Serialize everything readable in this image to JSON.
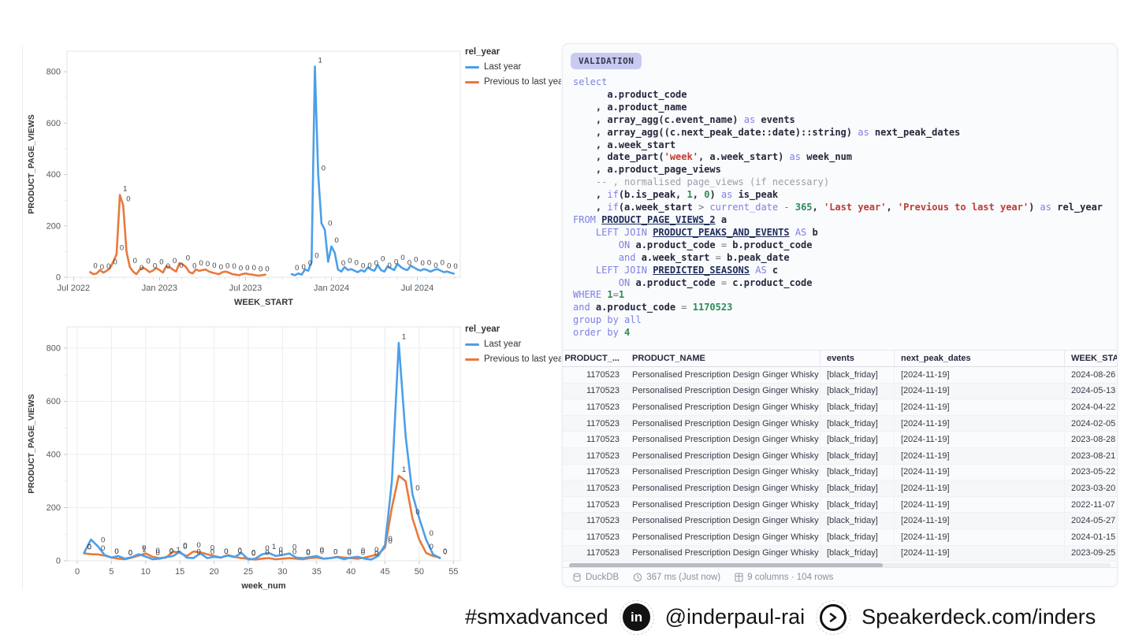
{
  "chart_data": [
    {
      "type": "line",
      "title": "",
      "xlabel": "WEEK_START",
      "ylabel": "PRODUCT_PAGE_VIEWS",
      "ylim": [
        0,
        880
      ],
      "yticks": [
        0,
        200,
        400,
        600,
        800
      ],
      "y_minor_step": 100,
      "xlim": [
        -2,
        117
      ],
      "x_minor_step": 4.345,
      "grid": false,
      "x_unit": "weeks since 2022-07-04",
      "xticks": [
        {
          "v": 0,
          "t": "Jul 2022"
        },
        {
          "v": 26,
          "t": "Jan 2023"
        },
        {
          "v": 52,
          "t": "Jul 2023"
        },
        {
          "v": 78,
          "t": "Jan 2024"
        },
        {
          "v": 104,
          "t": "Jul 2024"
        }
      ],
      "point_label_field": "is_peak",
      "legend": {
        "title": "rel_year",
        "position": "right"
      },
      "series": [
        {
          "name": "Last year",
          "color": "#4c9fe8",
          "x_start": 66,
          "x_step": 1,
          "values": [
            12,
            8,
            15,
            10,
            30,
            25,
            60,
            820,
            400,
            210,
            185,
            60,
            120,
            95,
            30,
            22,
            40,
            28,
            32,
            25,
            20,
            28,
            22,
            38,
            30,
            25,
            48,
            28,
            22,
            42,
            35,
            28,
            52,
            40,
            32,
            28,
            45,
            38,
            30,
            26,
            32,
            28,
            22,
            28,
            32,
            26,
            20,
            22,
            18,
            14
          ],
          "is_peak_at": [
            73
          ]
        },
        {
          "name": "Previous to last year",
          "color": "#e8793c",
          "x_start": 5,
          "x_step": 1,
          "values": [
            20,
            12,
            15,
            28,
            18,
            25,
            35,
            60,
            90,
            320,
            280,
            100,
            40,
            22,
            12,
            30,
            38,
            30,
            20,
            26,
            36,
            28,
            18,
            42,
            40,
            30,
            22,
            55,
            50,
            40,
            20,
            15,
            30,
            25,
            28,
            30,
            22,
            18,
            15,
            12,
            20,
            22,
            18,
            12,
            10,
            8,
            12,
            15,
            12,
            10,
            8,
            6,
            8,
            10
          ],
          "is_peak_at": [
            14
          ]
        }
      ]
    },
    {
      "type": "line",
      "title": "",
      "xlabel": "week_num",
      "ylabel": "PRODUCT_PAGE_VIEWS",
      "ylim": [
        0,
        880
      ],
      "yticks": [
        0,
        200,
        400,
        600,
        800
      ],
      "y_minor_step": 100,
      "xlim": [
        -1.5,
        56
      ],
      "x_minor_step": null,
      "grid": true,
      "x_unit": "week_num",
      "xticks": [
        {
          "v": 0,
          "t": "0"
        },
        {
          "v": 5,
          "t": "5"
        },
        {
          "v": 10,
          "t": "10"
        },
        {
          "v": 15,
          "t": "15"
        },
        {
          "v": 20,
          "t": "20"
        },
        {
          "v": 25,
          "t": "25"
        },
        {
          "v": 30,
          "t": "30"
        },
        {
          "v": 35,
          "t": "35"
        },
        {
          "v": 40,
          "t": "40"
        },
        {
          "v": 45,
          "t": "45"
        },
        {
          "v": 50,
          "t": "50"
        },
        {
          "v": 55,
          "t": "55"
        }
      ],
      "point_label_field": "is_peak",
      "legend": {
        "title": "rel_year",
        "position": "right"
      },
      "series": [
        {
          "name": "Last year",
          "color": "#4c9fe8",
          "x_start": 1,
          "x_step": 1,
          "values": [
            30,
            80,
            55,
            22,
            12,
            18,
            8,
            14,
            25,
            16,
            6,
            8,
            14,
            18,
            34,
            12,
            10,
            28,
            10,
            15,
            12,
            20,
            14,
            30,
            5,
            8,
            24,
            30,
            18,
            22,
            28,
            12,
            10,
            14,
            18,
            8,
            10,
            14,
            6,
            12,
            15,
            8,
            5,
            18,
            60,
            300,
            820,
            470,
            250,
            160,
            80,
            25,
            10
          ],
          "is_peak_at": [
            14,
            28,
            47
          ]
        },
        {
          "name": "Previous to last year",
          "color": "#e8793c",
          "x_start": 1,
          "x_step": 1,
          "values": [
            28,
            25,
            24,
            20,
            12,
            8,
            6,
            12,
            20,
            28,
            15,
            10,
            12,
            35,
            30,
            18,
            35,
            32,
            25,
            18,
            12,
            22,
            15,
            10,
            8,
            5,
            8,
            10,
            6,
            8,
            10,
            8,
            6,
            10,
            12,
            8,
            10,
            15,
            12,
            10,
            8,
            12,
            18,
            25,
            50,
            200,
            320,
            300,
            160,
            80,
            30,
            18,
            12
          ],
          "is_peak_at": [
            9,
            47
          ]
        }
      ]
    }
  ],
  "sql_panel": {
    "tab": "VALIDATION",
    "code": "select\n      a.product_code\n    , a.product_name\n    , array_agg(c.event_name) as events\n    , array_agg((c.next_peak_date::date)::string) as next_peak_dates\n    , a.week_start\n    , date_part('week', a.week_start) as week_num\n    , a.product_page_views\n    -- , normalised page_views (if necessary)\n    , if(b.is_peak, 1, 0) as is_peak\n    , if(a.week_start > current_date - 365, 'Last year', 'Previous to last year') as rel_year\nFROM PRODUCT_PAGE_VIEWS_2 a\n    LEFT JOIN PRODUCT_PEAKS_AND_EVENTS AS b\n        ON a.product_code = b.product_code\n        and a.week_start = b.peak_date\n    LEFT JOIN PREDICTED_SEASONS AS c\n        ON a.product_code = c.product_code\nWHERE 1=1\nand a.product_code = 1170523\ngroup by all\norder by 4",
    "table": {
      "columns": [
        {
          "key": "product_code",
          "label": "PRODUCT_..."
        },
        {
          "key": "product_name",
          "label": "PRODUCT_NAME"
        },
        {
          "key": "events",
          "label": "events"
        },
        {
          "key": "next_peak_dates",
          "label": "next_peak_dates"
        },
        {
          "key": "week_start",
          "label": "WEEK_START"
        }
      ],
      "rows": [
        {
          "product_code": "1170523",
          "product_name": "Personalised Prescription Design Ginger Whisky",
          "events": "[black_friday]",
          "next_peak_dates": "[2024-11-19]",
          "week_start": "2024-08-26"
        },
        {
          "product_code": "1170523",
          "product_name": "Personalised Prescription Design Ginger Whisky",
          "events": "[black_friday]",
          "next_peak_dates": "[2024-11-19]",
          "week_start": "2024-05-13"
        },
        {
          "product_code": "1170523",
          "product_name": "Personalised Prescription Design Ginger Whisky",
          "events": "[black_friday]",
          "next_peak_dates": "[2024-11-19]",
          "week_start": "2024-04-22"
        },
        {
          "product_code": "1170523",
          "product_name": "Personalised Prescription Design Ginger Whisky",
          "events": "[black_friday]",
          "next_peak_dates": "[2024-11-19]",
          "week_start": "2024-02-05"
        },
        {
          "product_code": "1170523",
          "product_name": "Personalised Prescription Design Ginger Whisky",
          "events": "[black_friday]",
          "next_peak_dates": "[2024-11-19]",
          "week_start": "2023-08-28"
        },
        {
          "product_code": "1170523",
          "product_name": "Personalised Prescription Design Ginger Whisky",
          "events": "[black_friday]",
          "next_peak_dates": "[2024-11-19]",
          "week_start": "2023-08-21"
        },
        {
          "product_code": "1170523",
          "product_name": "Personalised Prescription Design Ginger Whisky",
          "events": "[black_friday]",
          "next_peak_dates": "[2024-11-19]",
          "week_start": "2023-05-22"
        },
        {
          "product_code": "1170523",
          "product_name": "Personalised Prescription Design Ginger Whisky",
          "events": "[black_friday]",
          "next_peak_dates": "[2024-11-19]",
          "week_start": "2023-03-20"
        },
        {
          "product_code": "1170523",
          "product_name": "Personalised Prescription Design Ginger Whisky",
          "events": "[black_friday]",
          "next_peak_dates": "[2024-11-19]",
          "week_start": "2022-11-07"
        },
        {
          "product_code": "1170523",
          "product_name": "Personalised Prescription Design Ginger Whisky",
          "events": "[black_friday]",
          "next_peak_dates": "[2024-11-19]",
          "week_start": "2024-05-27"
        },
        {
          "product_code": "1170523",
          "product_name": "Personalised Prescription Design Ginger Whisky",
          "events": "[black_friday]",
          "next_peak_dates": "[2024-11-19]",
          "week_start": "2024-01-15"
        },
        {
          "product_code": "1170523",
          "product_name": "Personalised Prescription Design Ginger Whisky",
          "events": "[black_friday]",
          "next_peak_dates": "[2024-11-19]",
          "week_start": "2023-09-25"
        }
      ]
    },
    "status": {
      "engine": "DuckDB",
      "timing": "367 ms (Just now)",
      "shape": "9 columns · 104 rows"
    }
  },
  "footer": {
    "hashtag": "#smxadvanced",
    "linkedin_icon": "in",
    "linkedin_handle": "@inderpaul-rai",
    "speakerdeck_url": "Speakerdeck.com/inders"
  }
}
